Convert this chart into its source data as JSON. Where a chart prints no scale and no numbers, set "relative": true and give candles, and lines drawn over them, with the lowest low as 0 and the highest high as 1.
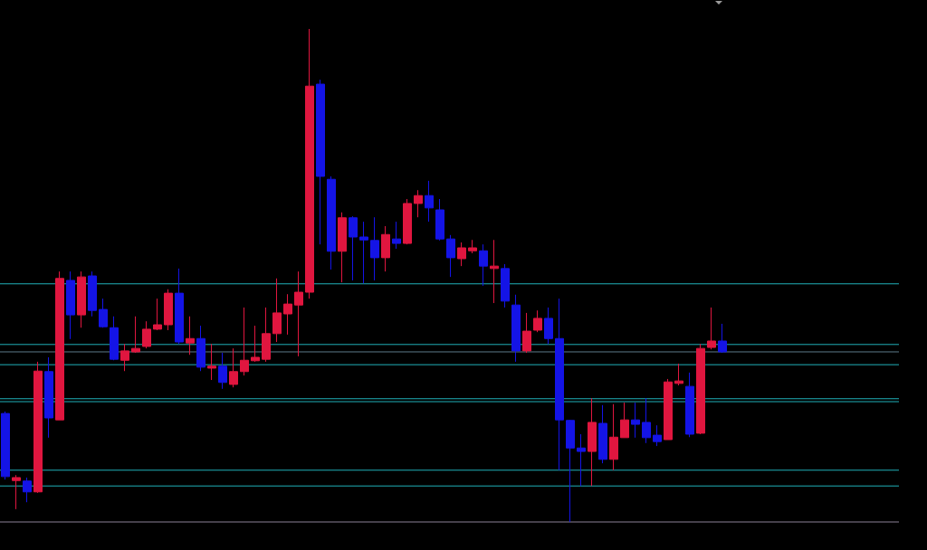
{
  "chart_data": {
    "type": "candlestick",
    "relative": true,
    "categories": [
      null,
      null,
      null,
      null,
      null,
      null,
      null,
      null,
      null,
      null,
      null,
      null,
      null,
      null,
      null,
      null,
      null,
      null,
      null,
      null,
      null,
      null,
      null,
      null,
      null,
      null,
      null,
      null,
      null,
      null,
      null,
      null,
      null,
      null,
      null,
      null,
      null,
      null,
      null,
      null,
      null,
      null,
      null,
      null,
      null,
      null,
      null,
      null,
      null,
      null,
      null,
      null,
      null,
      null,
      null,
      null,
      null,
      null,
      null,
      null,
      null,
      null,
      null,
      null,
      null,
      null,
      null
    ],
    "ohlc": [
      [
        0.22,
        0.224,
        0.086,
        0.092
      ],
      [
        0.084,
        0.095,
        0.026,
        0.09
      ],
      [
        0.083,
        0.09,
        0.04,
        0.061
      ],
      [
        0.061,
        0.325,
        0.059,
        0.306
      ],
      [
        0.305,
        0.334,
        0.171,
        0.211
      ],
      [
        0.207,
        0.508,
        0.207,
        0.494
      ],
      [
        0.49,
        0.508,
        0.371,
        0.42
      ],
      [
        0.42,
        0.508,
        0.394,
        0.497
      ],
      [
        0.499,
        0.508,
        0.417,
        0.429
      ],
      [
        0.431,
        0.453,
        0.394,
        0.396
      ],
      [
        0.394,
        0.417,
        0.328,
        0.33
      ],
      [
        0.328,
        0.361,
        0.306,
        0.347
      ],
      [
        0.345,
        0.417,
        0.343,
        0.352
      ],
      [
        0.356,
        0.407,
        0.352,
        0.391
      ],
      [
        0.391,
        0.453,
        0.389,
        0.4
      ],
      [
        0.4,
        0.472,
        0.389,
        0.464
      ],
      [
        0.464,
        0.514,
        0.361,
        0.365
      ],
      [
        0.363,
        0.417,
        0.339,
        0.372
      ],
      [
        0.372,
        0.398,
        0.306,
        0.314
      ],
      [
        0.312,
        0.361,
        0.288,
        0.316
      ],
      [
        0.316,
        0.343,
        0.27,
        0.283
      ],
      [
        0.279,
        0.352,
        0.273,
        0.305
      ],
      [
        0.305,
        0.435,
        0.297,
        0.328
      ],
      [
        0.327,
        0.398,
        0.325,
        0.334
      ],
      [
        0.33,
        0.435,
        0.325,
        0.382
      ],
      [
        0.382,
        0.494,
        0.365,
        0.424
      ],
      [
        0.422,
        0.462,
        0.38,
        0.442
      ],
      [
        0.44,
        0.508,
        0.336,
        0.466
      ],
      [
        0.466,
        1,
        0.453,
        0.884
      ],
      [
        0.888,
        0.897,
        0.563,
        0.701
      ],
      [
        0.695,
        0.701,
        0.512,
        0.549
      ],
      [
        0.549,
        0.628,
        0.486,
        0.617
      ],
      [
        0.617,
        0.62,
        0.49,
        0.578
      ],
      [
        0.578,
        0.609,
        0.484,
        0.572
      ],
      [
        0.571,
        0.618,
        0.49,
        0.536
      ],
      [
        0.536,
        0.6,
        0.508,
        0.583
      ],
      [
        0.574,
        0.609,
        0.554,
        0.565
      ],
      [
        0.565,
        0.655,
        0.563,
        0.646
      ],
      [
        0.646,
        0.673,
        0.618,
        0.662
      ],
      [
        0.662,
        0.692,
        0.609,
        0.637
      ],
      [
        0.633,
        0.655,
        0.571,
        0.574
      ],
      [
        0.574,
        0.582,
        0.497,
        0.536
      ],
      [
        0.534,
        0.567,
        0.519,
        0.556
      ],
      [
        0.55,
        0.572,
        0.545,
        0.556
      ],
      [
        0.55,
        0.563,
        0.479,
        0.519
      ],
      [
        0.514,
        0.572,
        0.444,
        0.519
      ],
      [
        0.514,
        0.523,
        0.435,
        0.448
      ],
      [
        0.44,
        0.461,
        0.325,
        0.347
      ],
      [
        0.347,
        0.424,
        0.343,
        0.387
      ],
      [
        0.389,
        0.429,
        0.385,
        0.413
      ],
      [
        0.413,
        0.435,
        0.361,
        0.372
      ],
      [
        0.372,
        0.453,
        0.105,
        0.207
      ],
      [
        0.206,
        0.207,
        0,
        0.15
      ],
      [
        0.15,
        0.178,
        0.073,
        0.143
      ],
      [
        0.143,
        0.251,
        0.073,
        0.202
      ],
      [
        0.2,
        0.237,
        0.119,
        0.127
      ],
      [
        0.127,
        0.239,
        0.105,
        0.172
      ],
      [
        0.171,
        0.242,
        0.171,
        0.207
      ],
      [
        0.207,
        0.242,
        0.171,
        0.198
      ],
      [
        0.202,
        0.251,
        0.16,
        0.171
      ],
      [
        0.176,
        0.196,
        0.154,
        0.163
      ],
      [
        0.167,
        0.29,
        0.167,
        0.284
      ],
      [
        0.281,
        0.321,
        0.277,
        0.286
      ],
      [
        0.275,
        0.303,
        0.172,
        0.178
      ],
      [
        0.18,
        0.361,
        0.178,
        0.352
      ],
      [
        0.354,
        0.435,
        0.35,
        0.367
      ],
      [
        0.367,
        0.402,
        0.343,
        0.345
      ]
    ],
    "colors": [
      "#1414e6",
      "#e0163f",
      "#1414e6",
      "#e0163f",
      "#1414e6",
      "#e0163f",
      "#1414e6",
      "#e0163f",
      "#1414e6",
      "#1414e6",
      "#1414e6",
      "#e0163f",
      "#e0163f",
      "#e0163f",
      "#e0163f",
      "#e0163f",
      "#1414e6",
      "#e0163f",
      "#1414e6",
      "#e0163f",
      "#1414e6",
      "#e0163f",
      "#e0163f",
      "#e0163f",
      "#e0163f",
      "#e0163f",
      "#e0163f",
      "#e0163f",
      "#e0163f",
      "#1414e6",
      "#1414e6",
      "#e0163f",
      "#1414e6",
      "#1414e6",
      "#1414e6",
      "#e0163f",
      "#1414e6",
      "#e0163f",
      "#e0163f",
      "#1414e6",
      "#1414e6",
      "#1414e6",
      "#e0163f",
      "#e0163f",
      "#1414e6",
      "#e0163f",
      "#1414e6",
      "#1414e6",
      "#e0163f",
      "#e0163f",
      "#1414e6",
      "#1414e6",
      "#1414e6",
      "#1414e6",
      "#e0163f",
      "#1414e6",
      "#e0163f",
      "#e0163f",
      "#1414e6",
      "#1414e6",
      "#1414e6",
      "#e0163f",
      "#e0163f",
      "#1414e6",
      "#e0163f",
      "#e0163f",
      "#1414e6"
    ],
    "ref_lines": [
      {
        "axis": "y",
        "value": 0.345,
        "color": "#5c7a88"
      },
      {
        "axis": "y",
        "value": 0.483,
        "color": "#20b0b8"
      },
      {
        "axis": "y",
        "value": 0.36,
        "color": "#20b0b8"
      },
      {
        "axis": "y",
        "value": 0.319,
        "color": "#20b0b8"
      },
      {
        "axis": "y",
        "value": 0.25,
        "color": "#20b0b8"
      },
      {
        "axis": "y",
        "value": 0.244,
        "color": "#20b0b8"
      },
      {
        "axis": "y",
        "value": 0.105,
        "color": "#20b0b8"
      },
      {
        "axis": "y",
        "value": 0.073,
        "color": "#20b0b8"
      },
      {
        "axis": "y",
        "value": 0,
        "color": "#8a8096"
      }
    ]
  }
}
